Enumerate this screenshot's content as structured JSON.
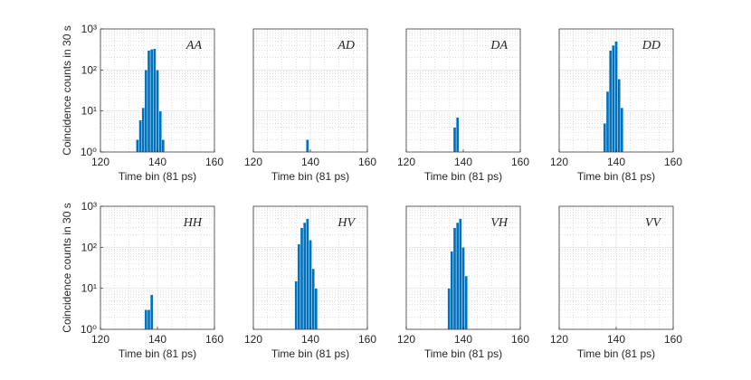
{
  "chart_data": [
    {
      "type": "histogram",
      "annotation": "AA",
      "xlabel": "Time bin (81 ps)",
      "ylabel": "Coincidence counts in 30 s",
      "log_y": true,
      "grid": true,
      "color": "#0072bd",
      "bins": [
        132.5,
        133.5,
        134.5,
        135.5,
        136.5,
        137.5,
        138.5,
        139.5,
        140.5,
        141.5,
        142.5
      ],
      "counts": [
        2,
        6,
        12,
        100,
        300,
        320,
        330,
        100,
        10,
        2
      ],
      "xlim": [
        120,
        160
      ],
      "xticks": [
        120,
        140,
        160
      ],
      "ylim": [
        1,
        1000
      ],
      "yticks": [
        {
          "value": 1,
          "label": "10⁰"
        },
        {
          "value": 10,
          "label": "10¹"
        },
        {
          "value": 100,
          "label": "10²"
        },
        {
          "value": 1000,
          "label": "10³"
        }
      ]
    },
    {
      "type": "histogram",
      "annotation": "AD",
      "xlabel": "Time bin (81 ps)",
      "log_y": true,
      "grid": true,
      "color": "#0072bd",
      "bins": [
        138.5,
        139.5
      ],
      "counts": [
        2
      ],
      "xlim": [
        120,
        160
      ],
      "xticks": [
        120,
        140,
        160
      ],
      "ylim": [
        1,
        1000
      ],
      "yticks": [
        1,
        10,
        100,
        1000
      ]
    },
    {
      "type": "histogram",
      "annotation": "DA",
      "xlabel": "Time bin (81 ps)",
      "log_y": true,
      "grid": true,
      "color": "#0072bd",
      "bins": [
        136.5,
        137.5,
        138.5
      ],
      "counts": [
        4,
        7
      ],
      "xlim": [
        120,
        160
      ],
      "xticks": [
        120,
        140,
        160
      ],
      "ylim": [
        1,
        1000
      ],
      "yticks": [
        1,
        10,
        100,
        1000
      ]
    },
    {
      "type": "histogram",
      "annotation": "DD",
      "xlabel": "Time bin (81 ps)",
      "log_y": true,
      "grid": true,
      "color": "#0072bd",
      "bins": [
        135.5,
        136.5,
        137.5,
        138.5,
        139.5,
        140.5,
        141.5,
        142.5
      ],
      "counts": [
        5,
        30,
        300,
        400,
        500,
        60,
        12
      ],
      "xlim": [
        120,
        160
      ],
      "xticks": [
        120,
        140,
        160
      ],
      "ylim": [
        1,
        1000
      ],
      "yticks": [
        1,
        10,
        100,
        1000
      ]
    },
    {
      "type": "histogram",
      "annotation": "HH",
      "xlabel": "Time bin (81 ps)",
      "ylabel": "Coincidence counts in 30 s",
      "log_y": true,
      "grid": true,
      "color": "#0072bd",
      "bins": [
        135.5,
        136.5,
        137.5,
        138.5
      ],
      "counts": [
        3,
        3,
        7
      ],
      "xlim": [
        120,
        160
      ],
      "xticks": [
        120,
        140,
        160
      ],
      "ylim": [
        1,
        1000
      ],
      "yticks": [
        {
          "value": 1,
          "label": "10⁰"
        },
        {
          "value": 10,
          "label": "10¹"
        },
        {
          "value": 100,
          "label": "10²"
        },
        {
          "value": 1000,
          "label": "10³"
        }
      ]
    },
    {
      "type": "histogram",
      "annotation": "HV",
      "xlabel": "Time bin (81 ps)",
      "log_y": true,
      "grid": true,
      "color": "#0072bd",
      "bins": [
        134.5,
        135.5,
        136.5,
        137.5,
        138.5,
        139.5,
        140.5,
        141.5,
        142.5
      ],
      "counts": [
        15,
        120,
        300,
        400,
        500,
        150,
        30,
        10
      ],
      "xlim": [
        120,
        160
      ],
      "xticks": [
        120,
        140,
        160
      ],
      "ylim": [
        1,
        1000
      ],
      "yticks": [
        1,
        10,
        100,
        1000
      ]
    },
    {
      "type": "histogram",
      "annotation": "VH",
      "xlabel": "Time bin (81 ps)",
      "log_y": true,
      "grid": true,
      "color": "#0072bd",
      "bins": [
        134.5,
        135.5,
        136.5,
        137.5,
        138.5,
        139.5,
        140.5,
        141.5
      ],
      "counts": [
        10,
        80,
        300,
        400,
        500,
        100,
        20
      ],
      "xlim": [
        120,
        160
      ],
      "xticks": [
        120,
        140,
        160
      ],
      "ylim": [
        1,
        1000
      ],
      "yticks": [
        1,
        10,
        100,
        1000
      ]
    },
    {
      "type": "histogram",
      "annotation": "VV",
      "xlabel": "Time bin (81 ps)",
      "log_y": true,
      "grid": true,
      "color": "#0072bd",
      "xlim": [
        120,
        160
      ],
      "xticks": [
        120,
        140,
        160
      ],
      "ylim": [
        1,
        1000
      ],
      "yticks": [
        1,
        10,
        100,
        1000
      ]
    }
  ]
}
